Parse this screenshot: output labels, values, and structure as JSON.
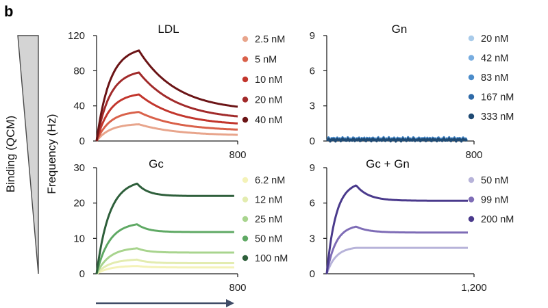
{
  "figure": {
    "panel_letter": "b",
    "side_label": "Binding (QCM)",
    "ylabel": "Frequency (Hz)"
  },
  "chart_data": [
    {
      "type": "line",
      "title": "LDL",
      "xlim": [
        0,
        800
      ],
      "ylim": [
        0,
        120
      ],
      "yticks": [
        "0",
        "40",
        "80",
        "120"
      ],
      "xtick_end": "800",
      "curve_model": "association-dissociation",
      "x_peak": 240,
      "x_end": 800,
      "series": [
        {
          "name": "2.5 nM",
          "color": "#e8a58c",
          "peak": 19,
          "end": 7
        },
        {
          "name": "5 nM",
          "color": "#d9614a",
          "peak": 33,
          "end": 13
        },
        {
          "name": "10 nM",
          "color": "#c2362d",
          "peak": 53,
          "end": 20
        },
        {
          "name": "20 nM",
          "color": "#a12a2a",
          "peak": 78,
          "end": 28
        },
        {
          "name": "40 nM",
          "color": "#6b1416",
          "peak": 103,
          "end": 39
        }
      ]
    },
    {
      "type": "line",
      "title": "Gn",
      "xlim": [
        0,
        800
      ],
      "ylim": [
        0,
        9
      ],
      "yticks": [
        "0",
        "3",
        "6",
        "9"
      ],
      "xtick_end": "800",
      "curve_model": "noise-near-zero",
      "x_end": 760,
      "series": [
        {
          "name": "20 nM",
          "color": "#a9cbea",
          "level": 0.1
        },
        {
          "name": "42 nM",
          "color": "#78ade0",
          "level": 0.15
        },
        {
          "name": "83 nM",
          "color": "#4b8cca",
          "level": 0.2
        },
        {
          "name": "167 nM",
          "color": "#2f6aa8",
          "level": 0.1
        },
        {
          "name": "333 nM",
          "color": "#1f4a73",
          "level": 0.1
        }
      ]
    },
    {
      "type": "line",
      "title": "Gc",
      "xlim": [
        0,
        800
      ],
      "ylim": [
        0,
        30
      ],
      "yticks": [
        "0",
        "10",
        "20",
        "30"
      ],
      "xtick_end": "800",
      "curve_model": "association-plateau",
      "x_peak": 230,
      "x_end": 780,
      "series": [
        {
          "name": "6.2 nM",
          "color": "#f4f2b8",
          "peak": 2.2,
          "end": 1.8
        },
        {
          "name": "12 nM",
          "color": "#e3ecb0",
          "peak": 4,
          "end": 3
        },
        {
          "name": "25 nM",
          "color": "#a8d48e",
          "peak": 7.2,
          "end": 6
        },
        {
          "name": "50 nM",
          "color": "#5fa964",
          "peak": 14,
          "end": 11.8
        },
        {
          "name": "100 nM",
          "color": "#2e5f3b",
          "peak": 25.5,
          "end": 22
        }
      ]
    },
    {
      "type": "line",
      "title": "Gc + Gn",
      "xlim": [
        0,
        1200
      ],
      "ylim": [
        0,
        9
      ],
      "yticks": [
        "0",
        "3",
        "6",
        "9"
      ],
      "xtick_end": "1,200",
      "curve_model": "association-plateau",
      "x_peak": 240,
      "x_end": 1150,
      "series": [
        {
          "name": "50 nM",
          "color": "#b7b3d9",
          "peak": 2.2,
          "end": 2.2
        },
        {
          "name": "99 nM",
          "color": "#7e6cb6",
          "peak": 4,
          "end": 3.5
        },
        {
          "name": "200 nM",
          "color": "#4a3a8c",
          "peak": 7.5,
          "end": 6.2
        }
      ]
    }
  ]
}
